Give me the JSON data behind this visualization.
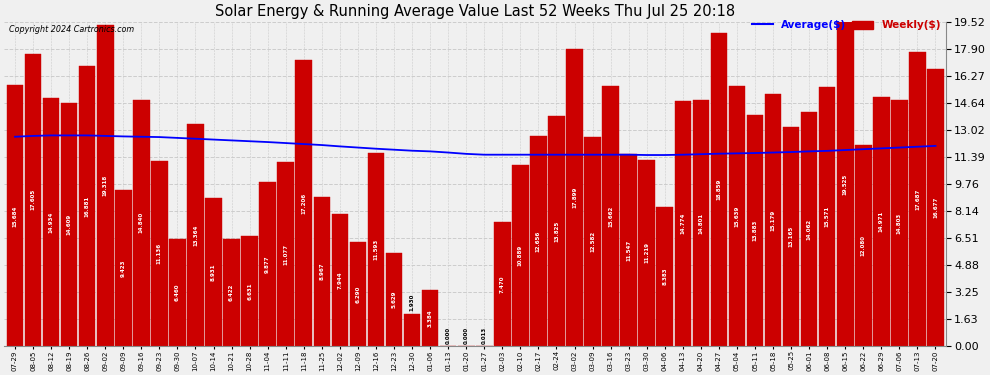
{
  "title": "Solar Energy & Running Average Value Last 52 Weeks Thu Jul 25 20:18",
  "copyright": "Copyright 2024 Cartronics.com",
  "bar_color": "#cc0000",
  "avg_line_color": "blue",
  "background_color": "#f0f0f0",
  "grid_color": "#aaaaaa",
  "ylim": [
    0.0,
    19.52
  ],
  "yticks": [
    0.0,
    1.63,
    3.25,
    4.88,
    6.51,
    8.14,
    9.76,
    11.39,
    13.02,
    14.64,
    16.27,
    17.9,
    19.52
  ],
  "dates": [
    "07-29",
    "08-05",
    "08-12",
    "08-19",
    "08-26",
    "09-02",
    "09-09",
    "09-16",
    "09-23",
    "09-30",
    "10-07",
    "10-14",
    "10-21",
    "10-28",
    "11-04",
    "11-11",
    "11-18",
    "11-25",
    "12-02",
    "12-09",
    "12-16",
    "12-23",
    "12-30",
    "01-06",
    "01-13",
    "01-20",
    "01-27",
    "02-03",
    "02-10",
    "02-17",
    "02-24",
    "03-02",
    "03-09",
    "03-16",
    "03-23",
    "03-30",
    "04-06",
    "04-13",
    "04-20",
    "04-27",
    "05-04",
    "05-11",
    "05-18",
    "05-25",
    "06-01",
    "06-08",
    "06-15",
    "06-22",
    "06-29",
    "07-06",
    "07-13",
    "07-20"
  ],
  "weekly_values": [
    15.684,
    17.605,
    14.934,
    14.609,
    16.881,
    19.318,
    9.423,
    14.84,
    11.136,
    6.46,
    13.364,
    8.931,
    6.422,
    6.631,
    9.877,
    11.077,
    17.206,
    8.967,
    7.944,
    6.29,
    11.593,
    5.629,
    1.93,
    3.384,
    0.0,
    0.0,
    0.013,
    7.47,
    10.889,
    12.656,
    13.825,
    17.899,
    12.582,
    15.662,
    11.547,
    11.219,
    8.383,
    14.774,
    14.801,
    18.859,
    15.639,
    13.883,
    15.179,
    13.165,
    14.062,
    15.571,
    19.525,
    12.08,
    14.971,
    14.803,
    17.687,
    16.677
  ],
  "avg_values": [
    12.6,
    12.65,
    12.68,
    12.68,
    12.68,
    12.65,
    12.62,
    12.6,
    12.58,
    12.53,
    12.48,
    12.43,
    12.38,
    12.33,
    12.28,
    12.22,
    12.16,
    12.1,
    12.02,
    11.95,
    11.88,
    11.82,
    11.76,
    11.72,
    11.65,
    11.57,
    11.52,
    11.52,
    11.52,
    11.52,
    11.52,
    11.52,
    11.52,
    11.52,
    11.52,
    11.5,
    11.5,
    11.52,
    11.55,
    11.58,
    11.6,
    11.62,
    11.65,
    11.68,
    11.72,
    11.75,
    11.8,
    11.85,
    11.9,
    11.95,
    12.0,
    12.05
  ]
}
